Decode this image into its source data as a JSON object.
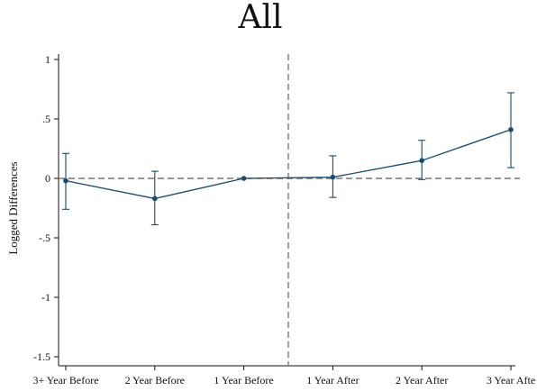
{
  "chart_data": {
    "type": "line",
    "title": "All",
    "xlabel": "",
    "ylabel": "Logged Differences",
    "categories": [
      "3+ Year Before",
      "2 Year Before",
      "1 Year Before",
      "1 Year After",
      "2 Year After",
      "3 Year Afte"
    ],
    "yticks": [
      1,
      0.5,
      0,
      -0.5,
      -1,
      -1.5
    ],
    "ytick_labels": [
      "1",
      ".5",
      "0",
      "-.5",
      "-1",
      "-1.5"
    ],
    "ylim": [
      -1.55,
      1.05
    ],
    "series": [
      {
        "values": [
          -0.02,
          -0.17,
          0.0,
          0.01,
          0.15,
          0.41
        ],
        "ci_lower": [
          -0.26,
          -0.39,
          0.0,
          -0.16,
          -0.01,
          0.09
        ],
        "ci_upper": [
          0.21,
          0.06,
          0.0,
          0.19,
          0.32,
          0.72
        ],
        "color": "#1a4a6e"
      }
    ],
    "reference_lines": {
      "horizontal_y": 0,
      "vertical_between": [
        "1 Year Before",
        "1 Year After"
      ]
    },
    "grid": false,
    "legend": false
  }
}
